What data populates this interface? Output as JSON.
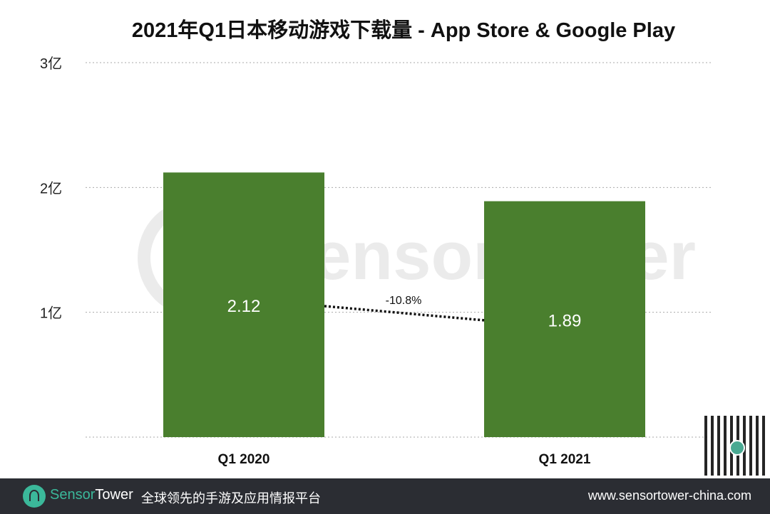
{
  "chart_data": {
    "type": "bar",
    "title": "2021年Q1日本移动游戏下载量 - App Store & Google Play",
    "categories": [
      "Q1  2020",
      "Q1 2021"
    ],
    "values": [
      2.12,
      1.89
    ],
    "data_labels": [
      "2.12",
      "1.89"
    ],
    "ylim": [
      0,
      3
    ],
    "yticks": [
      {
        "v": 1,
        "label": "1亿"
      },
      {
        "v": 2,
        "label": "2亿"
      },
      {
        "v": 3,
        "label": "3亿"
      }
    ],
    "grid": true,
    "bar_color": "#4a7f2e",
    "change_annotation": "-10.8%"
  },
  "watermark": "SensorTower",
  "footer": {
    "brand_a": "Sensor",
    "brand_b": "Tower",
    "slogan": "全球领先的手游及应用情报平台",
    "url": "www.sensortower-china.com"
  }
}
